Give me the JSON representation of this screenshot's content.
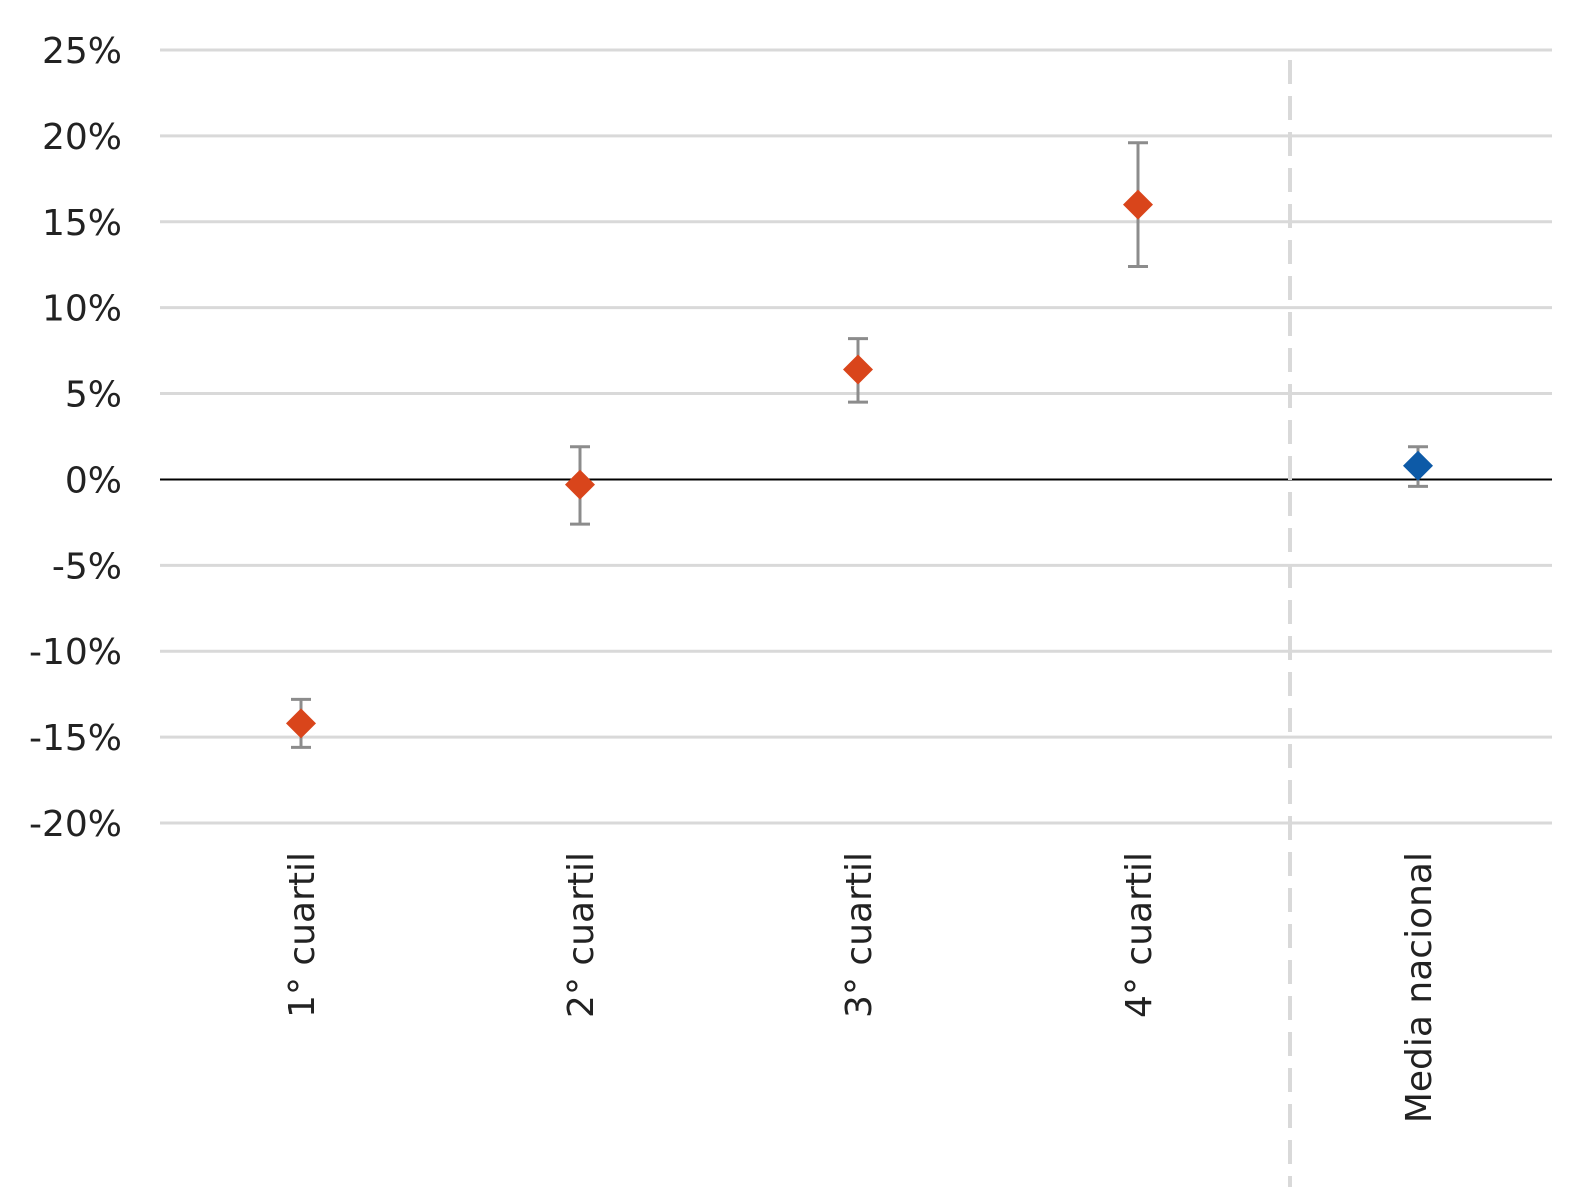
{
  "chart_data": {
    "type": "scatter",
    "categories": [
      "1° cuartil",
      "2° cuartil",
      "3° cuartil",
      "4° cuartil",
      "Media nacional"
    ],
    "points": [
      {
        "category": "1° cuartil",
        "value": -14.2,
        "error_low": -15.6,
        "error_high": -12.8,
        "color": "#d9451b"
      },
      {
        "category": "2° cuartil",
        "value": -0.3,
        "error_low": -2.6,
        "error_high": 1.9,
        "color": "#d9451b"
      },
      {
        "category": "3° cuartil",
        "value": 6.4,
        "error_low": 4.5,
        "error_high": 8.2,
        "color": "#d9451b"
      },
      {
        "category": "4° cuartil",
        "value": 16.0,
        "error_low": 12.4,
        "error_high": 19.6,
        "color": "#d9451b"
      },
      {
        "category": "Media nacional",
        "value": 0.8,
        "error_low": -0.4,
        "error_high": 1.9,
        "color": "#0d5aa7"
      }
    ],
    "ylim": [
      -20,
      25
    ],
    "yticks": [
      25,
      20,
      15,
      10,
      5,
      0,
      -5,
      -10,
      -15,
      -20
    ],
    "ytick_labels": [
      "25%",
      "20%",
      "15%",
      "10%",
      "5%",
      "0%",
      "-5%",
      "-10%",
      "-15%",
      "-20%"
    ],
    "grid": true,
    "separator": "dashed vertical line between 4° cuartil and Media nacional",
    "colors": {
      "quartiles": "#d9451b",
      "national": "#0d5aa7",
      "error_bar": "#8c8c8c",
      "grid": "#d9d9d9",
      "zero_line": "#000000"
    },
    "title": "",
    "xlabel": "",
    "ylabel": ""
  }
}
